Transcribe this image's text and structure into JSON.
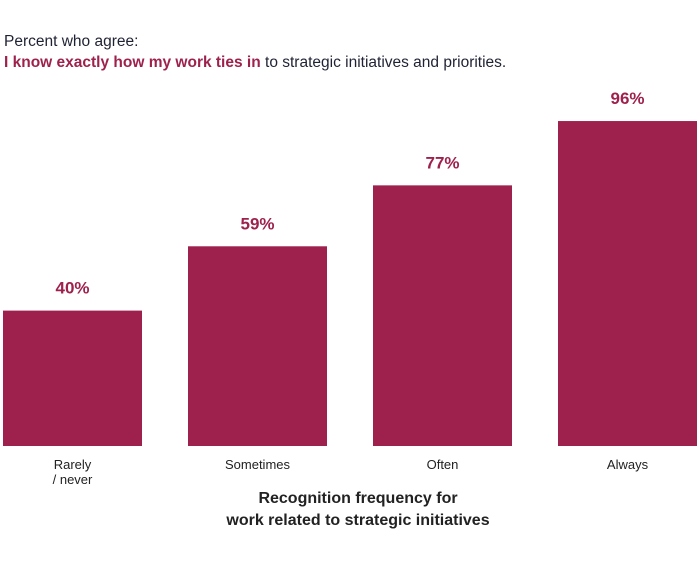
{
  "header": {
    "line1": "Percent who agree:",
    "highlight": "I know exactly how my work ties in",
    "rest": " to strategic initiatives and priorities."
  },
  "chart_data": {
    "type": "bar",
    "categories": [
      [
        "Rarely",
        "/ never"
      ],
      [
        "Sometimes"
      ],
      [
        "Often"
      ],
      [
        "Always"
      ]
    ],
    "values": [
      40,
      59,
      77,
      96
    ],
    "value_labels": [
      "40%",
      "59%",
      "77%",
      "96%"
    ],
    "xlabel": [
      "Recognition frequency for",
      "work related to strategic initiatives"
    ],
    "ylabel": "",
    "ylim": [
      0,
      100
    ],
    "grid": false,
    "bar_color": "#9e214d"
  }
}
